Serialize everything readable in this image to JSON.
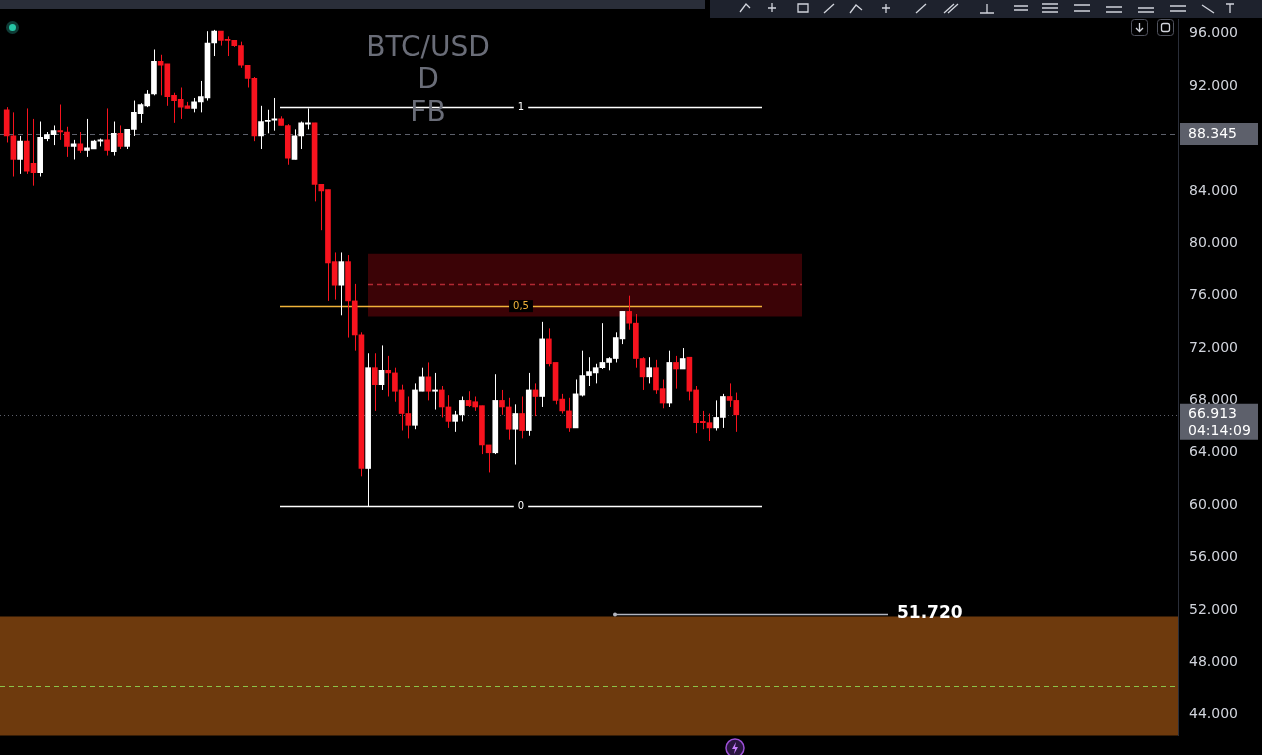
{
  "chart_data": {
    "type": "candlestick",
    "title": "BTC/USD",
    "subtitle": "D",
    "annotations": [
      "FB",
      "04:14:09",
      "1",
      "0,5",
      "0"
    ],
    "categories": [
      null,
      null,
      null,
      null,
      null,
      null,
      null,
      null,
      null,
      null,
      null,
      null,
      null,
      null,
      null,
      null,
      null,
      null,
      null,
      null,
      null,
      null,
      null,
      null,
      null,
      null,
      null,
      null,
      null,
      null,
      null,
      null,
      null,
      null,
      null,
      null,
      null,
      null,
      null,
      null,
      null,
      null,
      null,
      null,
      null,
      null,
      null,
      null,
      null,
      null,
      null,
      null,
      null,
      null,
      null,
      null,
      null,
      null,
      null,
      null,
      null,
      null,
      null,
      null,
      null,
      null,
      null,
      null,
      null,
      null,
      null,
      null,
      null,
      null,
      null,
      null,
      null,
      null,
      null,
      null,
      null,
      null,
      null,
      null,
      null,
      null,
      null,
      null,
      null,
      null,
      null,
      null,
      null,
      null,
      null,
      null,
      null,
      null,
      null,
      null,
      null,
      null,
      null,
      null,
      null,
      null,
      null,
      null,
      null,
      null,
      null,
      null,
      null,
      null,
      null,
      null,
      null,
      null,
      null,
      null,
      null,
      null,
      null,
      null,
      null,
      null,
      null,
      null,
      null,
      null,
      null,
      null,
      null,
      null,
      null,
      null,
      null,
      null,
      null,
      null,
      null,
      null,
      null,
      null,
      null,
      null,
      null,
      null,
      null,
      null,
      null,
      null,
      null,
      null,
      null,
      null,
      null,
      null,
      null,
      null,
      null,
      null,
      null,
      null,
      null,
      null,
      null,
      null,
      null,
      null,
      null,
      null,
      null,
      null,
      null,
      null,
      null
    ],
    "ohlc": [
      null,
      [
        90200,
        90400,
        87700,
        88200
      ],
      [
        88200,
        90000,
        85100,
        86400
      ],
      [
        86400,
        88200,
        85300,
        87800
      ],
      [
        87800,
        90300,
        85300,
        85500
      ],
      [
        86100,
        89500,
        84400,
        85400
      ],
      [
        85400,
        89300,
        85100,
        88100
      ],
      [
        88000,
        88500,
        87800,
        88300
      ],
      [
        88300,
        89000,
        87500,
        88600
      ],
      [
        88600,
        90600,
        87900,
        88500
      ],
      [
        88500,
        88900,
        86600,
        87400
      ],
      [
        87400,
        87900,
        86400,
        87600
      ],
      [
        87600,
        88500,
        86900,
        87100
      ],
      [
        87100,
        89500,
        86600,
        87300
      ],
      [
        87200,
        87900,
        87200,
        87800
      ],
      [
        87800,
        88000,
        87400,
        87900
      ],
      [
        87900,
        90300,
        86700,
        87100
      ],
      [
        87000,
        89300,
        86700,
        88400
      ],
      [
        88400,
        89000,
        87200,
        87400
      ],
      [
        87400,
        88700,
        87200,
        88700
      ],
      [
        88700,
        90900,
        88200,
        90000
      ],
      [
        89900,
        90700,
        89200,
        90600
      ],
      [
        90500,
        91700,
        90400,
        91400
      ],
      [
        91400,
        94800,
        91300,
        93900
      ],
      [
        93900,
        94400,
        91300,
        93600
      ],
      [
        93700,
        93700,
        90500,
        91200
      ],
      [
        91300,
        91500,
        89200,
        90900
      ],
      [
        91000,
        91900,
        89500,
        90400
      ],
      [
        90500,
        90800,
        90300,
        90300
      ],
      [
        90300,
        91100,
        90000,
        90800
      ],
      [
        90800,
        92400,
        90000,
        91200
      ],
      [
        91100,
        96200,
        90900,
        95300
      ],
      [
        95300,
        96300,
        94300,
        96200
      ],
      [
        96200,
        96200,
        95100,
        95500
      ],
      [
        95500,
        95800,
        94300,
        95500
      ],
      [
        95500,
        95500,
        95000,
        95100
      ],
      [
        95100,
        95400,
        93400,
        93600
      ],
      [
        93600,
        93600,
        91900,
        92600
      ],
      [
        92600,
        92700,
        87800,
        88200
      ],
      [
        88200,
        90500,
        87200,
        89300
      ],
      [
        89300,
        90200,
        88400,
        89400
      ],
      [
        89400,
        91100,
        88600,
        89500
      ],
      [
        89500,
        89700,
        89000,
        89000
      ],
      [
        89000,
        89100,
        86000,
        86500
      ],
      [
        86400,
        88700,
        86400,
        88200
      ],
      [
        88200,
        89300,
        87200,
        89200
      ],
      [
        89100,
        90300,
        88700,
        89200
      ],
      [
        89200,
        89200,
        83200,
        84500
      ],
      [
        84500,
        84500,
        81000,
        84000
      ],
      [
        84100,
        84100,
        75600,
        78500
      ],
      [
        78600,
        79300,
        75700,
        76800
      ],
      [
        76800,
        79300,
        74500,
        78600
      ],
      [
        78600,
        79100,
        72800,
        75600
      ],
      [
        75600,
        76900,
        71800,
        73000
      ],
      [
        73000,
        73200,
        62200,
        62800
      ],
      [
        62800,
        71600,
        59900,
        70500
      ],
      [
        70500,
        71600,
        67200,
        69200
      ],
      [
        69200,
        72200,
        68800,
        70300
      ],
      [
        70300,
        71400,
        68300,
        70100
      ],
      [
        70100,
        70500,
        67900,
        68700
      ],
      [
        68800,
        69200,
        65700,
        67000
      ],
      [
        67000,
        68300,
        65100,
        66100
      ],
      [
        66100,
        69300,
        65800,
        68800
      ],
      [
        68700,
        70500,
        68700,
        69800
      ],
      [
        69800,
        70900,
        68000,
        68700
      ],
      [
        68700,
        70100,
        67300,
        68800
      ],
      [
        68800,
        69100,
        66700,
        67500
      ],
      [
        67500,
        68400,
        65900,
        66400
      ],
      [
        66400,
        67200,
        65600,
        66900
      ],
      [
        66900,
        68300,
        66400,
        68000
      ],
      [
        68000,
        68700,
        67500,
        67600
      ],
      [
        67900,
        68300,
        67200,
        67500
      ],
      [
        67600,
        67600,
        63900,
        64600
      ],
      [
        64600,
        64600,
        62500,
        64000
      ],
      [
        64000,
        70000,
        63900,
        68000
      ],
      [
        68000,
        68800,
        66900,
        67500
      ],
      [
        67500,
        68200,
        65000,
        65800
      ],
      [
        65800,
        67700,
        63100,
        67000
      ],
      [
        67000,
        68300,
        65100,
        65700
      ],
      [
        65700,
        70100,
        65300,
        68800
      ],
      [
        68800,
        69300,
        66800,
        68300
      ],
      [
        68300,
        74000,
        67500,
        72700
      ],
      [
        72700,
        73500,
        70600,
        70800
      ],
      [
        70900,
        70900,
        67700,
        68000
      ],
      [
        68100,
        68500,
        67000,
        67200
      ],
      [
        67200,
        68200,
        65600,
        65900
      ],
      [
        65900,
        69600,
        65900,
        68500
      ],
      [
        68400,
        71800,
        68300,
        69900
      ],
      [
        69900,
        71300,
        69100,
        70200
      ],
      [
        70100,
        70800,
        69300,
        70500
      ],
      [
        70500,
        73900,
        70400,
        70900
      ],
      [
        70900,
        71300,
        70300,
        71200
      ],
      [
        71200,
        73200,
        70900,
        72800
      ],
      [
        72700,
        74800,
        72300,
        74800
      ],
      [
        74800,
        76000,
        73400,
        73900
      ],
      [
        73900,
        74600,
        70500,
        71200
      ],
      [
        71200,
        71300,
        68800,
        69800
      ],
      [
        69800,
        71300,
        69300,
        70500
      ],
      [
        70500,
        71100,
        68500,
        68800
      ],
      [
        68900,
        69600,
        67400,
        67800
      ],
      [
        67800,
        71800,
        67500,
        70900
      ],
      [
        70900,
        71400,
        68900,
        70400
      ],
      [
        70400,
        72000,
        70400,
        71200
      ],
      [
        71300,
        71300,
        68000,
        68700
      ],
      [
        68800,
        69100,
        65500,
        66300
      ],
      [
        66400,
        67200,
        65800,
        66300
      ],
      [
        66300,
        67000,
        64900,
        65900
      ],
      [
        65900,
        68000,
        65700,
        66700
      ],
      [
        66700,
        68500,
        65900,
        68300
      ],
      [
        68300,
        69300,
        67500,
        68000
      ],
      [
        68000,
        68600,
        65600,
        66900
      ],
      null,
      null,
      null,
      null,
      null,
      null,
      null,
      null,
      null,
      null,
      null,
      null,
      null,
      null,
      null,
      null,
      null,
      null,
      null,
      null,
      null,
      null,
      null,
      null,
      null,
      null,
      null,
      null,
      null,
      null,
      null,
      null,
      null,
      null,
      null,
      null,
      null,
      null,
      null,
      null,
      null,
      null,
      null,
      null,
      null,
      null,
      null,
      null,
      null,
      null,
      null,
      null,
      null,
      null,
      null,
      null,
      null,
      null,
      null,
      null,
      null,
      null,
      null,
      null,
      null,
      null
    ],
    "colors": [
      null,
      "#f7131e",
      "#f7131e",
      "#ffffff",
      "#f7131e",
      "#f7131e",
      "#ffffff",
      "#ffffff",
      "#ffffff",
      "#f7131e",
      "#f7131e",
      "#ffffff",
      "#f7131e",
      "#ffffff",
      "#ffffff",
      "#ffffff",
      "#f7131e",
      "#ffffff",
      "#f7131e",
      "#ffffff",
      "#ffffff",
      "#ffffff",
      "#ffffff",
      "#ffffff",
      "#f7131e",
      "#f7131e",
      "#f7131e",
      "#f7131e",
      "#f7131e",
      "#ffffff",
      "#ffffff",
      "#ffffff",
      "#ffffff",
      "#f7131e",
      "#f7131e",
      "#f7131e",
      "#f7131e",
      "#f7131e",
      "#f7131e",
      "#ffffff",
      "#ffffff",
      "#ffffff",
      "#f7131e",
      "#f7131e",
      "#ffffff",
      "#ffffff",
      "#ffffff",
      "#f7131e",
      "#f7131e",
      "#f7131e",
      "#f7131e",
      "#ffffff",
      "#f7131e",
      "#f7131e",
      "#f7131e",
      "#ffffff",
      "#f7131e",
      "#ffffff",
      "#f7131e",
      "#f7131e",
      "#f7131e",
      "#f7131e",
      "#ffffff",
      "#ffffff",
      "#f7131e",
      "#ffffff",
      "#f7131e",
      "#f7131e",
      "#ffffff",
      "#ffffff",
      "#f7131e",
      "#f7131e",
      "#f7131e",
      "#f7131e",
      "#ffffff",
      "#f7131e",
      "#f7131e",
      "#ffffff",
      "#f7131e",
      "#ffffff",
      "#f7131e",
      "#ffffff",
      "#f7131e",
      "#f7131e",
      "#f7131e",
      "#f7131e",
      "#ffffff",
      "#ffffff",
      "#ffffff",
      "#ffffff",
      "#ffffff",
      "#ffffff",
      "#ffffff",
      "#ffffff",
      "#f7131e",
      "#f7131e",
      "#f7131e",
      "#ffffff",
      "#f7131e",
      "#f7131e",
      "#ffffff",
      "#f7131e",
      "#ffffff",
      "#f7131e",
      "#f7131e",
      "#f7131e",
      "#f7131e",
      "#ffffff",
      "#ffffff",
      "#f7131e",
      "#f7131e",
      null,
      null,
      null,
      null,
      null,
      null,
      null,
      null,
      null,
      null,
      null,
      null,
      null,
      null,
      null,
      null,
      null,
      null,
      null,
      null,
      null,
      null,
      null,
      null,
      null,
      null,
      null,
      null,
      null,
      null,
      null,
      null,
      null,
      null,
      null,
      null,
      null,
      null,
      null,
      null,
      null,
      null,
      null,
      null,
      null,
      null,
      null,
      null,
      null,
      null,
      null,
      null,
      null,
      null,
      null,
      null,
      null,
      null,
      null,
      null,
      null,
      null,
      null,
      null,
      null,
      null
    ],
    "ylim": [
      42400,
      97100
    ],
    "yticks": [
      {
        "value": 44000,
        "label": "44.000"
      },
      {
        "value": 48000,
        "label": "48.000"
      },
      {
        "value": 52000,
        "label": "52.000"
      },
      {
        "value": 56000,
        "label": "56.000"
      },
      {
        "value": 60000,
        "label": "60.000"
      },
      {
        "value": 64000,
        "label": "64.000"
      },
      {
        "value": 68000,
        "label": "68.000"
      },
      {
        "value": 72000,
        "label": "72.000"
      },
      {
        "value": 76000,
        "label": "76.000"
      },
      {
        "value": 80000,
        "label": "80.000"
      },
      {
        "value": 84000,
        "label": "84.000"
      },
      {
        "value": 92000,
        "label": "92.000"
      },
      {
        "value": 96000,
        "label": "96.000"
      }
    ],
    "tick_labels": "y",
    "grid": false,
    "legend": false,
    "ref_lines": [
      {
        "axis": "y",
        "value": 90400,
        "color": "#ffffff"
      },
      {
        "axis": "y",
        "value": 75200,
        "color": "#f0b23a"
      },
      {
        "axis": "y",
        "value": 59900,
        "color": "#ffffff"
      },
      {
        "axis": "y",
        "value": 76900,
        "color": "#b22833",
        "line_style": "dashed"
      },
      {
        "axis": "y",
        "value": 88345,
        "label": "88.345",
        "color": "#5d606b",
        "line_style": "dashed"
      },
      {
        "axis": "y",
        "value": 66913,
        "label": "66.913",
        "color": "#5d606b",
        "line_style": "dotted"
      },
      {
        "axis": "y",
        "value": 51720,
        "label": "51.720",
        "color": "#b2b5be"
      },
      {
        "axis": "y",
        "value": 46200,
        "color": "#8bc34a",
        "line_style": "dashed"
      }
    ],
    "bands": [
      {
        "axis": "y",
        "from": 74400,
        "to": 79200,
        "color": "#3b0306"
      },
      {
        "axis": "y",
        "from": 42400,
        "to": 51500,
        "color": "#6e3a0d"
      }
    ]
  }
}
